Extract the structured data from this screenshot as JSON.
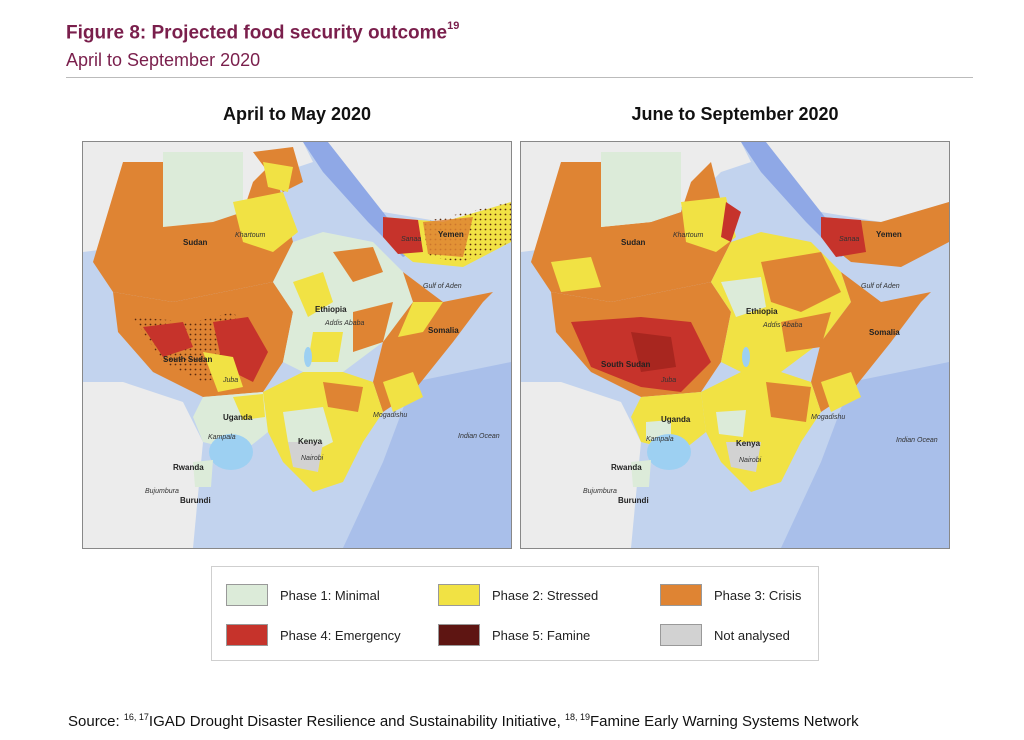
{
  "figure": {
    "title": "Figure 8: Projected food security outcome",
    "title_sup": "19",
    "subtitle": "April to September 2020"
  },
  "maps": [
    {
      "title": "April to May 2020",
      "places": {
        "sudan": "Sudan",
        "khartoum": "Khartoum",
        "yemen": "Yemen",
        "sanaa": "Sanaa",
        "gulf_aden": "Gulf of Aden",
        "ethiopia": "Ethiopia",
        "addis": "Addis Ababa",
        "somalia": "Somalia",
        "south_sudan": "South Sudan",
        "juba": "Juba",
        "uganda": "Uganda",
        "kampala": "Kampala",
        "kenya": "Kenya",
        "nairobi": "Nairobi",
        "mogadishu": "Mogadishu",
        "indian_ocean": "Indian Ocean",
        "rwanda": "Rwanda",
        "bujumbura": "Bujumbura",
        "burundi": "Burundi"
      }
    },
    {
      "title": "June to September 2020",
      "places": {
        "sudan": "Sudan",
        "khartoum": "Khartoum",
        "yemen": "Yemen",
        "sanaa": "Sanaa",
        "gulf_aden": "Gulf of Aden",
        "ethiopia": "Ethiopia",
        "addis": "Addis Ababa",
        "somalia": "Somalia",
        "south_sudan": "South Sudan",
        "juba": "Juba",
        "uganda": "Uganda",
        "kampala": "Kampala",
        "kenya": "Kenya",
        "nairobi": "Nairobi",
        "mogadishu": "Mogadishu",
        "indian_ocean": "Indian Ocean",
        "rwanda": "Rwanda",
        "bujumbura": "Bujumbura",
        "burundi": "Burundi"
      }
    }
  ],
  "legend": [
    {
      "label": "Phase 1: Minimal",
      "color": "#dcebd9"
    },
    {
      "label": "Phase 2: Stressed",
      "color": "#f1e244"
    },
    {
      "label": "Phase 3: Crisis",
      "color": "#df8433"
    },
    {
      "label": "Phase 4: Emergency",
      "color": "#c6332b"
    },
    {
      "label": "Phase 5: Famine",
      "color": "#5e1512"
    },
    {
      "label": "Not analysed",
      "color": "#d2d2d2"
    }
  ],
  "source": {
    "prefix": "Source: ",
    "sup1": "16, 17",
    "text1": "IGAD Drought Disaster Resilience and Sustainability Initiative, ",
    "sup2": "18, 19",
    "text2": "Famine Early Warning Systems Network"
  },
  "colors": {
    "water": "#c2d3ee",
    "land_out": "#ececec",
    "sea": "#8fa8e6",
    "lake": "#9dd0f2",
    "title": "#7a1f4c"
  }
}
